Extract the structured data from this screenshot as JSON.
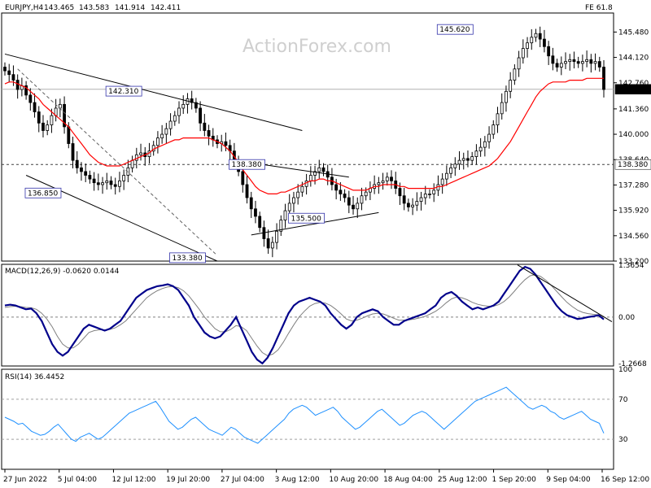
{
  "chart_data": {
    "type": "candlestick",
    "header": {
      "symbol": "EURJPY,H4",
      "open": "143.465",
      "high": "143.583",
      "low": "141.914",
      "close": "142.411",
      "fib_label": "FE 61.8"
    },
    "watermark": "ActionForex.com",
    "price_axis": {
      "min": 133.2,
      "max": 146.5,
      "ticks": [
        "145.480",
        "144.120",
        "142.760",
        "141.360",
        "140.000",
        "138.640",
        "137.280",
        "135.920",
        "134.560",
        "133.200"
      ],
      "current_price_tag": "142.411",
      "level_tag": "138.380"
    },
    "time_axis": {
      "ticks": [
        "27 Jun 2022",
        "5 Jul 04:00",
        "12 Jul 12:00",
        "19 Jul 20:00",
        "27 Jul 04:00",
        "3 Aug 12:00",
        "10 Aug 20:00",
        "18 Aug 04:00",
        "25 Aug 12:00",
        "1 Sep 20:00",
        "9 Sep 04:00",
        "16 Sep 12:00"
      ]
    },
    "price_labels": [
      {
        "text": "142.310",
        "value": 142.31
      },
      {
        "text": "136.850",
        "value": 136.85
      },
      {
        "text": "133.380",
        "value": 133.38
      },
      {
        "text": "138.380",
        "value": 138.38
      },
      {
        "text": "135.500",
        "value": 135.5
      },
      {
        "text": "145.620",
        "value": 145.62
      }
    ],
    "close_series": [
      143.4,
      143.2,
      142.9,
      142.4,
      142.6,
      142.1,
      141.7,
      141.2,
      140.6,
      140.2,
      140.5,
      141.0,
      141.4,
      141.6,
      140.4,
      139.5,
      138.6,
      138.2,
      138.0,
      137.8,
      137.6,
      137.4,
      137.3,
      137.4,
      137.5,
      137.3,
      137.2,
      137.5,
      137.8,
      138.2,
      138.6,
      138.9,
      139.0,
      138.8,
      139.1,
      139.4,
      139.8,
      140.0,
      140.3,
      140.7,
      141.0,
      141.4,
      141.6,
      141.9,
      141.7,
      141.4,
      140.6,
      140.2,
      139.9,
      139.7,
      139.5,
      139.6,
      139.4,
      139.1,
      138.6,
      138.0,
      137.3,
      136.6,
      136.0,
      135.6,
      135.0,
      134.4,
      133.9,
      134.2,
      134.8,
      135.4,
      135.9,
      136.3,
      136.6,
      136.9,
      137.2,
      137.5,
      137.8,
      138.0,
      138.2,
      138.0,
      137.7,
      137.3,
      137.0,
      136.8,
      136.6,
      136.2,
      136.0,
      136.3,
      136.7,
      136.9,
      137.1,
      137.3,
      137.4,
      137.5,
      137.7,
      137.5,
      137.1,
      136.7,
      136.3,
      136.1,
      136.2,
      136.4,
      136.6,
      136.8,
      136.8,
      137.0,
      137.3,
      137.6,
      137.9,
      138.2,
      138.4,
      138.6,
      138.7,
      138.6,
      138.8,
      139.1,
      139.3,
      139.6,
      140.0,
      140.5,
      141.1,
      141.7,
      142.3,
      142.9,
      143.5,
      144.1,
      144.6,
      144.9,
      145.2,
      145.4,
      145.1,
      144.7,
      144.2,
      143.8,
      143.6,
      143.8,
      143.9,
      144.0,
      143.9,
      143.8,
      143.9,
      144.0,
      143.8,
      143.9,
      143.6,
      142.4
    ],
    "ma_series": [
      142.7,
      142.8,
      142.8,
      142.7,
      142.6,
      142.5,
      142.3,
      142.1,
      141.9,
      141.6,
      141.4,
      141.2,
      141.0,
      140.8,
      140.6,
      140.4,
      140.1,
      139.8,
      139.5,
      139.2,
      138.9,
      138.7,
      138.5,
      138.4,
      138.3,
      138.3,
      138.3,
      138.3,
      138.4,
      138.5,
      138.6,
      138.7,
      138.8,
      138.9,
      139.0,
      139.2,
      139.3,
      139.4,
      139.5,
      139.6,
      139.7,
      139.7,
      139.8,
      139.8,
      139.8,
      139.8,
      139.8,
      139.8,
      139.8,
      139.7,
      139.6,
      139.5,
      139.3,
      139.1,
      138.8,
      138.5,
      138.1,
      137.8,
      137.5,
      137.2,
      137.0,
      136.9,
      136.8,
      136.8,
      136.8,
      136.9,
      136.9,
      137.0,
      137.1,
      137.2,
      137.3,
      137.4,
      137.5,
      137.5,
      137.6,
      137.6,
      137.5,
      137.5,
      137.4,
      137.3,
      137.2,
      137.1,
      137.0,
      137.0,
      137.0,
      137.0,
      137.1,
      137.2,
      137.2,
      137.3,
      137.3,
      137.3,
      137.3,
      137.2,
      137.2,
      137.1,
      137.1,
      137.1,
      137.1,
      137.1,
      137.1,
      137.1,
      137.2,
      137.2,
      137.3,
      137.4,
      137.5,
      137.6,
      137.7,
      137.8,
      137.9,
      138.0,
      138.1,
      138.2,
      138.3,
      138.5,
      138.7,
      139.0,
      139.3,
      139.6,
      140.0,
      140.4,
      140.8,
      141.2,
      141.6,
      142.0,
      142.3,
      142.5,
      142.7,
      142.8,
      142.8,
      142.8,
      142.8,
      142.9,
      142.9,
      142.9,
      142.9,
      143.0,
      143.0,
      143.0,
      143.0,
      143.0
    ],
    "macd": {
      "label": "MACD(12,26,9) -0.0620 0.0144",
      "max": 1.3654,
      "min": -1.2668,
      "zero_label": "0.00",
      "top_label": "1.3654",
      "bottom_label": "-1.2668",
      "main_series": [
        0.3,
        0.32,
        0.3,
        0.25,
        0.2,
        0.22,
        0.1,
        -0.1,
        -0.4,
        -0.7,
        -0.9,
        -1.0,
        -0.9,
        -0.7,
        -0.5,
        -0.3,
        -0.2,
        -0.25,
        -0.3,
        -0.35,
        -0.3,
        -0.2,
        -0.1,
        0.1,
        0.3,
        0.5,
        0.6,
        0.7,
        0.75,
        0.8,
        0.82,
        0.85,
        0.8,
        0.7,
        0.5,
        0.3,
        0.0,
        -0.2,
        -0.4,
        -0.5,
        -0.55,
        -0.5,
        -0.35,
        -0.2,
        0.0,
        -0.3,
        -0.6,
        -0.9,
        -1.1,
        -1.2,
        -1.05,
        -0.8,
        -0.5,
        -0.2,
        0.1,
        0.3,
        0.4,
        0.45,
        0.5,
        0.45,
        0.4,
        0.3,
        0.1,
        -0.05,
        -0.2,
        -0.3,
        -0.2,
        0.0,
        0.1,
        0.15,
        0.2,
        0.15,
        0.0,
        -0.1,
        -0.2,
        -0.2,
        -0.1,
        -0.05,
        0.0,
        0.05,
        0.1,
        0.2,
        0.3,
        0.5,
        0.6,
        0.65,
        0.55,
        0.4,
        0.3,
        0.2,
        0.25,
        0.2,
        0.25,
        0.3,
        0.4,
        0.6,
        0.8,
        1.0,
        1.2,
        1.3,
        1.25,
        1.1,
        0.9,
        0.7,
        0.5,
        0.3,
        0.15,
        0.05,
        0.0,
        -0.05,
        -0.03,
        0.0,
        0.02,
        0.05,
        -0.06
      ],
      "signal_series": [
        0.25,
        0.27,
        0.28,
        0.27,
        0.25,
        0.24,
        0.2,
        0.1,
        -0.05,
        -0.25,
        -0.5,
        -0.7,
        -0.8,
        -0.8,
        -0.7,
        -0.55,
        -0.4,
        -0.35,
        -0.33,
        -0.33,
        -0.32,
        -0.28,
        -0.2,
        -0.1,
        0.05,
        0.2,
        0.35,
        0.5,
        0.6,
        0.68,
        0.74,
        0.78,
        0.79,
        0.76,
        0.68,
        0.55,
        0.38,
        0.2,
        0.0,
        -0.15,
        -0.3,
        -0.38,
        -0.38,
        -0.32,
        -0.22,
        -0.25,
        -0.35,
        -0.55,
        -0.75,
        -0.92,
        -1.0,
        -0.96,
        -0.85,
        -0.65,
        -0.42,
        -0.2,
        0.0,
        0.15,
        0.28,
        0.35,
        0.38,
        0.36,
        0.3,
        0.2,
        0.08,
        -0.05,
        -0.1,
        -0.08,
        -0.03,
        0.03,
        0.08,
        0.1,
        0.08,
        0.03,
        -0.03,
        -0.08,
        -0.08,
        -0.07,
        -0.05,
        -0.02,
        0.02,
        0.08,
        0.15,
        0.25,
        0.37,
        0.47,
        0.52,
        0.5,
        0.45,
        0.38,
        0.33,
        0.3,
        0.28,
        0.28,
        0.32,
        0.4,
        0.52,
        0.67,
        0.83,
        0.97,
        1.07,
        1.1,
        1.05,
        0.95,
        0.82,
        0.67,
        0.52,
        0.38,
        0.27,
        0.18,
        0.12,
        0.09,
        0.07,
        0.06,
        0.01
      ]
    },
    "rsi": {
      "label": "RSI(14) 36.4452",
      "max": 100,
      "min": 0,
      "levels": [
        "100",
        "70",
        "30",
        "0"
      ],
      "series": [
        52,
        50,
        48,
        45,
        46,
        42,
        38,
        36,
        34,
        35,
        38,
        42,
        45,
        40,
        35,
        30,
        28,
        32,
        34,
        36,
        33,
        30,
        32,
        36,
        40,
        44,
        48,
        52,
        56,
        58,
        60,
        62,
        64,
        66,
        68,
        62,
        55,
        48,
        44,
        40,
        42,
        46,
        50,
        52,
        48,
        44,
        40,
        38,
        36,
        34,
        38,
        42,
        40,
        36,
        32,
        30,
        28,
        26,
        30,
        34,
        38,
        42,
        46,
        50,
        56,
        60,
        62,
        64,
        62,
        58,
        54,
        56,
        58,
        60,
        62,
        58,
        52,
        48,
        44,
        40,
        42,
        46,
        50,
        54,
        58,
        60,
        56,
        52,
        48,
        44,
        46,
        50,
        54,
        56,
        58,
        56,
        52,
        48,
        44,
        40,
        44,
        48,
        52,
        56,
        60,
        64,
        68,
        70,
        72,
        74,
        76,
        78,
        80,
        82,
        78,
        74,
        70,
        66,
        62,
        60,
        62,
        64,
        62,
        58,
        56,
        52,
        50,
        52,
        54,
        56,
        58,
        54,
        50,
        48,
        46,
        36
      ]
    }
  },
  "colors": {
    "candle": "#000000",
    "ma": "#ff0000",
    "macd_main": "#00008b",
    "macd_signal": "#808080",
    "trendline": "#000000",
    "dashed_line": "#606060",
    "grid_level": "#b0b0b0",
    "tag_bg": "#ffffff",
    "tag_border": "#3333aa"
  }
}
